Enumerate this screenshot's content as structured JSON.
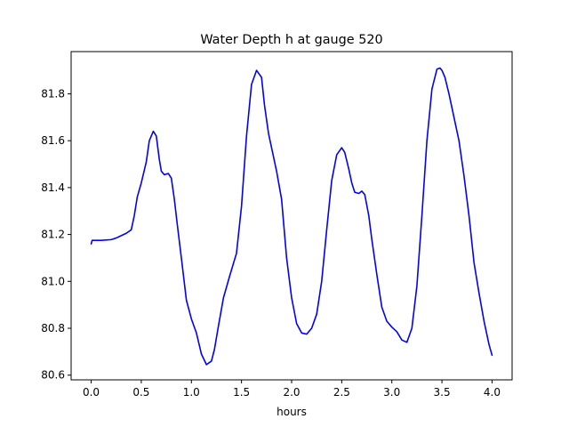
{
  "chart_data": {
    "type": "line",
    "title": "Water Depth h at gauge 520",
    "xlabel": "hours",
    "ylabel": "",
    "xlim": [
      -0.2,
      4.2
    ],
    "ylim": [
      80.58,
      81.98
    ],
    "xticks": [
      0.0,
      0.5,
      1.0,
      1.5,
      2.0,
      2.5,
      3.0,
      3.5,
      4.0
    ],
    "xtick_labels": [
      "0.0",
      "0.5",
      "1.0",
      "1.5",
      "2.0",
      "2.5",
      "3.0",
      "3.5",
      "4.0"
    ],
    "yticks": [
      80.6,
      80.8,
      81.0,
      81.2,
      81.4,
      81.6,
      81.8
    ],
    "ytick_labels": [
      "80.6",
      "80.8",
      "81.0",
      "81.2",
      "81.4",
      "81.6",
      "81.8"
    ],
    "grid": false,
    "series": [
      {
        "color": "#0000ff",
        "x": [
          0.0,
          0.01,
          0.1,
          0.2,
          0.25,
          0.3,
          0.35,
          0.4,
          0.43,
          0.46,
          0.5,
          0.55,
          0.58,
          0.62,
          0.65,
          0.68,
          0.7,
          0.73,
          0.77,
          0.8,
          0.83,
          0.86,
          0.9,
          0.95,
          1.0,
          1.05,
          1.1,
          1.15,
          1.2,
          1.23,
          1.27,
          1.32,
          1.38,
          1.45,
          1.5,
          1.55,
          1.6,
          1.65,
          1.7,
          1.73,
          1.77,
          1.8,
          1.85,
          1.9,
          1.95,
          2.0,
          2.05,
          2.1,
          2.15,
          2.2,
          2.25,
          2.3,
          2.35,
          2.4,
          2.45,
          2.5,
          2.53,
          2.57,
          2.6,
          2.63,
          2.67,
          2.7,
          2.73,
          2.77,
          2.8,
          2.85,
          2.9,
          2.95,
          3.0,
          3.05,
          3.1,
          3.15,
          3.2,
          3.25,
          3.3,
          3.35,
          3.4,
          3.45,
          3.48,
          3.5,
          3.53,
          3.57,
          3.62,
          3.67,
          3.72,
          3.77,
          3.82,
          3.87,
          3.92,
          3.97,
          4.0
        ],
        "y": [
          81.16,
          81.175,
          81.175,
          81.178,
          81.185,
          81.195,
          81.205,
          81.22,
          81.28,
          81.36,
          81.42,
          81.51,
          81.6,
          81.64,
          81.62,
          81.52,
          81.47,
          81.455,
          81.46,
          81.44,
          81.35,
          81.24,
          81.1,
          80.92,
          80.84,
          80.78,
          80.69,
          80.645,
          80.66,
          80.71,
          80.81,
          80.93,
          81.02,
          81.12,
          81.32,
          81.62,
          81.84,
          81.9,
          81.87,
          81.75,
          81.63,
          81.57,
          81.47,
          81.35,
          81.1,
          80.93,
          80.82,
          80.78,
          80.775,
          80.8,
          80.86,
          81.0,
          81.22,
          81.43,
          81.54,
          81.57,
          81.55,
          81.48,
          81.42,
          81.38,
          81.375,
          81.385,
          81.37,
          81.28,
          81.18,
          81.03,
          80.89,
          80.83,
          80.805,
          80.785,
          80.75,
          80.74,
          80.8,
          80.98,
          81.28,
          81.6,
          81.82,
          81.905,
          81.91,
          81.9,
          81.87,
          81.8,
          81.7,
          81.6,
          81.45,
          81.28,
          81.08,
          80.95,
          80.83,
          80.73,
          80.685
        ]
      }
    ]
  }
}
